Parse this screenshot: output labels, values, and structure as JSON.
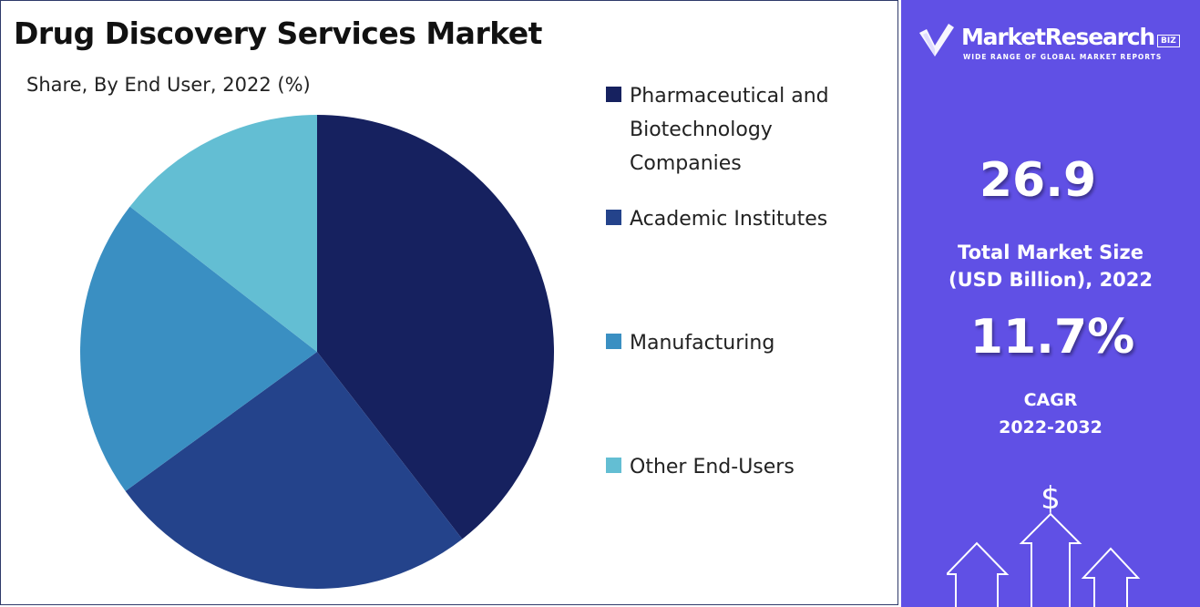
{
  "title": "Drug Discovery Services Market",
  "subtitle": "Share, By End User, 2022 (%)",
  "chart_data": {
    "type": "pie",
    "title": "Drug Discovery Services Market",
    "subtitle": "Share, By End User, 2022 (%)",
    "categories": [
      "Pharmaceutical and Biotechnology Companies",
      "Academic Institutes",
      "Manufacturing",
      "Other End-Users"
    ],
    "values": [
      39.5,
      25.5,
      20.5,
      14.5
    ],
    "colors": [
      "#16215f",
      "#24438b",
      "#3a8fc2",
      "#63bed3"
    ],
    "start_angle_deg": 0,
    "direction": "clockwise",
    "legend_position": "right"
  },
  "sidebar": {
    "brand": {
      "name": "MarketResearch",
      "badge": "BIZ",
      "tagline": "WIDE RANGE OF GLOBAL MARKET REPORTS"
    },
    "market_size": {
      "value": "26.9",
      "label_line1": "Total Market Size",
      "label_line2": "(USD Billion), 2022"
    },
    "cagr": {
      "value": "11.7%",
      "label_line1": "CAGR",
      "label_line2": "2022-2032"
    },
    "currency_symbol": "$",
    "background_color": "#6050e5"
  }
}
